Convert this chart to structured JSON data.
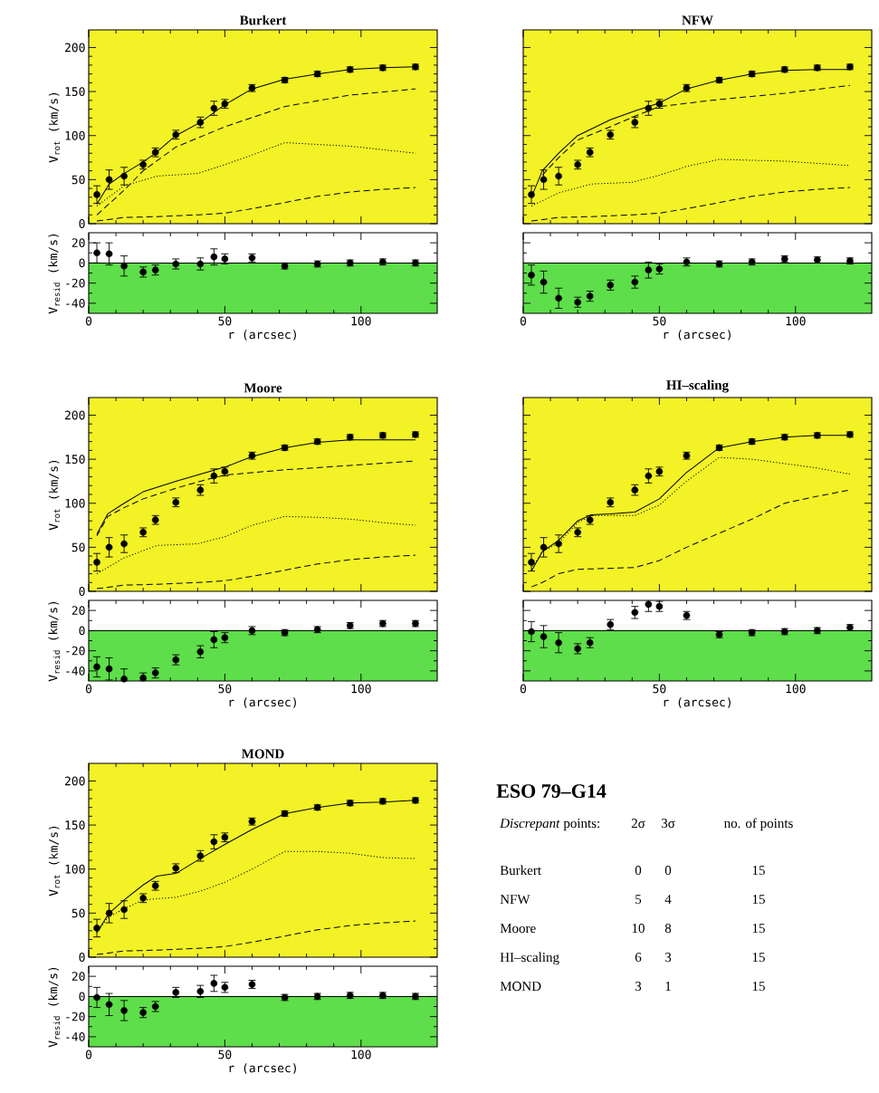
{
  "chart_data": [
    {
      "type": "line",
      "title": "Burkert",
      "ylabel": "V$_{rot}$ (km/s)",
      "xlim": [
        0,
        128
      ],
      "ylim": [
        0,
        220
      ],
      "xticks": [
        0,
        50,
        100
      ],
      "yticks": [
        0,
        50,
        100,
        150,
        200
      ],
      "tick_labels": "y",
      "x": [
        3,
        7.5,
        13,
        20,
        24.5,
        32,
        41,
        46,
        50,
        60,
        72,
        84,
        96,
        108,
        120
      ],
      "bands": [
        {
          "axis": "y",
          "from": 0,
          "to": 220,
          "color": "#f2f226"
        }
      ],
      "series": [
        {
          "type": "line",
          "color": "#000000",
          "line_style": "solid",
          "x": [
            3,
            7.5,
            13,
            20,
            24.5,
            32,
            41,
            50,
            60,
            72,
            84,
            96,
            108,
            120
          ],
          "values": [
            22,
            45,
            57,
            70,
            80,
            100,
            115,
            135,
            153,
            164,
            170,
            175,
            177,
            178
          ]
        },
        {
          "type": "line",
          "color": "#000000",
          "line_style": "dashed",
          "x": [
            3,
            13,
            20,
            32,
            50,
            72,
            96,
            120
          ],
          "values": [
            10,
            38,
            60,
            87,
            110,
            133,
            146,
            153
          ]
        },
        {
          "type": "line",
          "color": "#000000",
          "line_style": "dotted",
          "x": [
            3,
            13,
            25,
            40,
            50,
            60,
            72,
            84,
            96,
            108,
            120
          ],
          "values": [
            20,
            43,
            54,
            57,
            67,
            78,
            92,
            90,
            88,
            84,
            80
          ]
        },
        {
          "type": "line",
          "color": "#000000",
          "line_style": "dashed",
          "x": [
            3,
            13,
            25,
            40,
            50,
            60,
            72,
            84,
            96,
            108,
            120
          ],
          "values": [
            3,
            7,
            8,
            10,
            12,
            17,
            24,
            31,
            36,
            39,
            41
          ]
        },
        {
          "type": "scatter",
          "color": "#000000",
          "marker": "circle",
          "values": [
            33,
            50,
            54,
            67,
            81,
            101,
            115,
            131,
            136,
            154,
            163,
            170,
            175,
            177,
            178
          ],
          "errors": [
            10,
            11,
            10,
            5,
            5,
            5,
            6,
            8,
            5,
            4,
            3,
            3,
            3,
            3,
            3
          ]
        }
      ]
    },
    {
      "type": "scatter",
      "xlabel": "r (arcsec)",
      "ylabel": "V$_{resid}$ (km/s)",
      "xlim": [
        0,
        128
      ],
      "ylim": [
        -50,
        30
      ],
      "xticks": [
        0,
        50,
        100
      ],
      "yticks": [
        -40,
        -20,
        0,
        20
      ],
      "x": [
        3,
        7.5,
        13,
        20,
        24.5,
        32,
        41,
        46,
        50,
        60,
        72,
        84,
        96,
        108,
        120
      ],
      "bands": [
        {
          "axis": "y",
          "from": -50,
          "to": 0,
          "color": "#5ede4a"
        }
      ],
      "ref_lines": [
        {
          "axis": "y",
          "value": 0
        }
      ],
      "series": [
        {
          "color": "#000000",
          "marker": "circle",
          "values": [
            10,
            9,
            -3,
            -9,
            -7,
            -1,
            -1,
            6,
            4,
            5,
            -3,
            -1,
            0,
            1,
            0
          ],
          "errors": [
            10,
            11,
            10,
            5,
            5,
            5,
            6,
            8,
            5,
            4,
            3,
            3,
            3,
            3,
            3
          ]
        }
      ]
    },
    {
      "type": "line",
      "title": "NFW",
      "xlim": [
        0,
        128
      ],
      "ylim": [
        0,
        220
      ],
      "xticks": [
        0,
        50,
        100
      ],
      "yticks": [
        0,
        50,
        100,
        150,
        200
      ],
      "tick_labels": false,
      "x": [
        3,
        7.5,
        13,
        20,
        24.5,
        32,
        41,
        46,
        50,
        60,
        72,
        84,
        96,
        108,
        120
      ],
      "bands": [
        {
          "axis": "y",
          "from": 0,
          "to": 220,
          "color": "#f2f226"
        }
      ],
      "series": [
        {
          "type": "line",
          "color": "#000000",
          "line_style": "solid",
          "x": [
            3,
            7,
            13,
            20,
            32,
            41,
            50,
            60,
            72,
            84,
            96,
            108,
            120
          ],
          "values": [
            30,
            60,
            80,
            100,
            118,
            128,
            137,
            153,
            163,
            170,
            174,
            175,
            175
          ]
        },
        {
          "type": "line",
          "color": "#000000",
          "line_style": "dashed",
          "x": [
            7,
            13,
            20,
            32,
            41,
            50,
            72,
            96,
            120
          ],
          "values": [
            55,
            75,
            95,
            110,
            122,
            133,
            141,
            148,
            157
          ]
        },
        {
          "type": "line",
          "color": "#000000",
          "line_style": "dotted",
          "x": [
            3,
            13,
            25,
            40,
            50,
            60,
            72,
            84,
            96,
            120
          ],
          "values": [
            20,
            35,
            45,
            47,
            55,
            65,
            73,
            72,
            71,
            66
          ]
        },
        {
          "type": "line",
          "color": "#000000",
          "line_style": "dashed",
          "x": [
            3,
            13,
            25,
            40,
            50,
            60,
            72,
            84,
            96,
            108,
            120
          ],
          "values": [
            3,
            7,
            8,
            10,
            12,
            17,
            24,
            31,
            36,
            39,
            41
          ]
        },
        {
          "type": "scatter",
          "color": "#000000",
          "marker": "circle",
          "values": [
            33,
            50,
            54,
            67,
            81,
            101,
            115,
            131,
            136,
            154,
            163,
            170,
            175,
            177,
            178
          ],
          "errors": [
            10,
            11,
            10,
            5,
            5,
            5,
            6,
            8,
            5,
            4,
            3,
            3,
            3,
            3,
            3
          ]
        }
      ]
    },
    {
      "type": "scatter",
      "xlabel": "r (arcsec)",
      "xlim": [
        0,
        128
      ],
      "ylim": [
        -50,
        30
      ],
      "xticks": [
        0,
        50,
        100
      ],
      "yticks": [
        -40,
        -20,
        0,
        20
      ],
      "tick_labels": "x",
      "x": [
        3,
        7.5,
        13,
        20,
        24.5,
        32,
        41,
        46,
        50,
        60,
        72,
        84,
        96,
        108,
        120
      ],
      "bands": [
        {
          "axis": "y",
          "from": -50,
          "to": 0,
          "color": "#5ede4a"
        }
      ],
      "ref_lines": [
        {
          "axis": "y",
          "value": 0
        }
      ],
      "series": [
        {
          "color": "#000000",
          "marker": "circle",
          "values": [
            -12,
            -19,
            -35,
            -39,
            -33,
            -22,
            -19,
            -7,
            -6,
            1,
            -1,
            1,
            4,
            3,
            2
          ],
          "errors": [
            10,
            11,
            10,
            5,
            5,
            5,
            6,
            8,
            5,
            4,
            3,
            3,
            3,
            3,
            3
          ]
        }
      ]
    },
    {
      "type": "line",
      "title": "Moore",
      "ylabel": "V$_{rot}$ (km/s)",
      "xlim": [
        0,
        128
      ],
      "ylim": [
        0,
        220
      ],
      "xticks": [
        0,
        50,
        100
      ],
      "yticks": [
        0,
        50,
        100,
        150,
        200
      ],
      "tick_labels": "y",
      "x": [
        3,
        7.5,
        13,
        20,
        24.5,
        32,
        41,
        46,
        50,
        60,
        72,
        84,
        96,
        108,
        120
      ],
      "bands": [
        {
          "axis": "y",
          "from": 0,
          "to": 220,
          "color": "#f2f226"
        }
      ],
      "series": [
        {
          "type": "line",
          "color": "#000000",
          "line_style": "solid",
          "x": [
            3,
            7,
            13,
            20,
            32,
            41,
            50,
            60,
            72,
            84,
            96,
            120
          ],
          "values": [
            65,
            88,
            100,
            113,
            125,
            133,
            141,
            153,
            163,
            169,
            172,
            172
          ]
        },
        {
          "type": "line",
          "color": "#000000",
          "line_style": "dashed",
          "x": [
            3,
            7,
            13,
            20,
            32,
            41,
            50,
            72,
            96,
            120
          ],
          "values": [
            63,
            85,
            95,
            105,
            117,
            125,
            132,
            138,
            143,
            148
          ]
        },
        {
          "type": "line",
          "color": "#000000",
          "line_style": "dotted",
          "x": [
            3,
            13,
            25,
            40,
            50,
            60,
            72,
            84,
            96,
            108,
            120
          ],
          "values": [
            20,
            38,
            52,
            54,
            62,
            75,
            85,
            84,
            82,
            78,
            75
          ]
        },
        {
          "type": "line",
          "color": "#000000",
          "line_style": "dashed",
          "x": [
            3,
            13,
            25,
            40,
            50,
            60,
            72,
            84,
            96,
            108,
            120
          ],
          "values": [
            3,
            7,
            8,
            10,
            12,
            17,
            24,
            31,
            36,
            39,
            41
          ]
        },
        {
          "type": "scatter",
          "color": "#000000",
          "marker": "circle",
          "values": [
            33,
            50,
            54,
            67,
            81,
            101,
            115,
            131,
            136,
            154,
            163,
            170,
            175,
            177,
            178
          ],
          "errors": [
            10,
            11,
            10,
            5,
            5,
            5,
            6,
            8,
            5,
            4,
            3,
            3,
            3,
            3,
            3
          ]
        }
      ]
    },
    {
      "type": "scatter",
      "xlabel": "r (arcsec)",
      "ylabel": "V$_{resid}$ (km/s)",
      "xlim": [
        0,
        128
      ],
      "ylim": [
        -50,
        30
      ],
      "xticks": [
        0,
        50,
        100
      ],
      "yticks": [
        -40,
        -20,
        0,
        20
      ],
      "x": [
        3,
        7.5,
        13,
        20,
        24.5,
        32,
        41,
        46,
        50,
        60,
        72,
        84,
        96,
        108,
        120
      ],
      "bands": [
        {
          "axis": "y",
          "from": -50,
          "to": 0,
          "color": "#5ede4a"
        }
      ],
      "ref_lines": [
        {
          "axis": "y",
          "value": 0
        }
      ],
      "series": [
        {
          "color": "#000000",
          "marker": "circle",
          "values": [
            -36,
            -38,
            -48,
            -47,
            -42,
            -29,
            -21,
            -9,
            -7,
            0,
            -2,
            1,
            5,
            7,
            7
          ],
          "errors": [
            10,
            11,
            [
              -50,
              -38
            ],
            [
              -50,
              -42
            ],
            5,
            5,
            6,
            8,
            5,
            4,
            3,
            3,
            3,
            3,
            3
          ]
        }
      ]
    },
    {
      "type": "line",
      "title": "HI–scaling",
      "xlim": [
        0,
        128
      ],
      "ylim": [
        0,
        220
      ],
      "xticks": [
        0,
        50,
        100
      ],
      "yticks": [
        0,
        50,
        100,
        150,
        200
      ],
      "tick_labels": false,
      "x": [
        3,
        7.5,
        13,
        20,
        24.5,
        32,
        41,
        46,
        50,
        60,
        72,
        84,
        96,
        108,
        120
      ],
      "bands": [
        {
          "axis": "y",
          "from": 0,
          "to": 220,
          "color": "#f2f226"
        }
      ],
      "series": [
        {
          "type": "line",
          "color": "#000000",
          "line_style": "solid",
          "x": [
            3,
            7,
            13,
            20,
            25,
            32,
            41,
            50,
            60,
            72,
            84,
            96,
            108,
            120
          ],
          "values": [
            23,
            45,
            58,
            80,
            87,
            88,
            90,
            105,
            135,
            163,
            170,
            175,
            177,
            177
          ]
        },
        {
          "type": "line",
          "color": "#000000",
          "line_style": "dotted",
          "x": [
            3,
            7,
            13,
            20,
            25,
            32,
            41,
            50,
            60,
            72,
            84,
            96,
            108,
            120
          ],
          "values": [
            25,
            45,
            55,
            78,
            86,
            86,
            86,
            98,
            125,
            152,
            150,
            145,
            140,
            133
          ]
        },
        {
          "type": "line",
          "color": "#000000",
          "line_style": "dashed",
          "x": [
            3,
            7,
            13,
            20,
            41,
            50,
            60,
            72,
            84,
            96,
            108,
            120
          ],
          "values": [
            5,
            10,
            20,
            25,
            27,
            35,
            50,
            66,
            82,
            100,
            108,
            115
          ]
        },
        {
          "type": "scatter",
          "color": "#000000",
          "marker": "circle",
          "values": [
            33,
            50,
            54,
            67,
            81,
            101,
            115,
            131,
            136,
            154,
            163,
            170,
            175,
            177,
            178
          ],
          "errors": [
            10,
            11,
            10,
            5,
            5,
            5,
            6,
            8,
            5,
            4,
            3,
            3,
            3,
            3,
            3
          ]
        }
      ]
    },
    {
      "type": "scatter",
      "xlabel": "r (arcsec)",
      "xlim": [
        0,
        128
      ],
      "ylim": [
        -50,
        30
      ],
      "xticks": [
        0,
        50,
        100
      ],
      "yticks": [
        -40,
        -20,
        0,
        20
      ],
      "tick_labels": "x",
      "x": [
        3,
        7.5,
        13,
        20,
        24.5,
        32,
        41,
        46,
        50,
        60,
        72,
        84,
        96,
        108,
        120
      ],
      "bands": [
        {
          "axis": "y",
          "from": -50,
          "to": 0,
          "color": "#5ede4a"
        }
      ],
      "ref_lines": [
        {
          "axis": "y",
          "value": 0
        }
      ],
      "series": [
        {
          "color": "#000000",
          "marker": "circle",
          "values": [
            -1,
            -6,
            -12,
            -18,
            -12,
            6,
            18,
            26,
            24,
            15,
            -4,
            -2,
            -1,
            0,
            3
          ],
          "errors": [
            10,
            11,
            10,
            5,
            5,
            5,
            6,
            [
              19,
              30
            ],
            5,
            4,
            3,
            3,
            3,
            3,
            3
          ]
        }
      ]
    },
    {
      "type": "line",
      "title": "MOND",
      "ylabel": "V$_{rot}$ (km/s)",
      "xlim": [
        0,
        128
      ],
      "ylim": [
        0,
        220
      ],
      "xticks": [
        0,
        50,
        100
      ],
      "yticks": [
        0,
        50,
        100,
        150,
        200
      ],
      "tick_labels": "y",
      "x": [
        3,
        7.5,
        13,
        20,
        24.5,
        32,
        41,
        46,
        50,
        60,
        72,
        84,
        96,
        108,
        120
      ],
      "bands": [
        {
          "axis": "y",
          "from": 0,
          "to": 220,
          "color": "#f2f226"
        }
      ],
      "series": [
        {
          "type": "line",
          "color": "#000000",
          "line_style": "solid",
          "x": [
            3,
            7.5,
            13,
            20,
            25,
            32,
            41,
            50,
            60,
            72,
            84,
            96,
            108,
            120
          ],
          "values": [
            28,
            50,
            65,
            82,
            92,
            95,
            112,
            128,
            145,
            163,
            170,
            175,
            176,
            178
          ]
        },
        {
          "type": "line",
          "color": "#000000",
          "line_style": "dotted",
          "x": [
            3,
            7,
            13,
            20,
            32,
            41,
            50,
            60,
            72,
            84,
            96,
            108,
            120
          ],
          "values": [
            28,
            45,
            55,
            65,
            68,
            75,
            85,
            100,
            120,
            120,
            118,
            113,
            112
          ]
        },
        {
          "type": "line",
          "color": "#000000",
          "line_style": "dashed",
          "x": [
            3,
            13,
            25,
            40,
            50,
            60,
            72,
            84,
            96,
            108,
            120
          ],
          "values": [
            3,
            7,
            8,
            10,
            12,
            17,
            24,
            31,
            36,
            39,
            41
          ]
        },
        {
          "type": "scatter",
          "color": "#000000",
          "marker": "circle",
          "values": [
            33,
            50,
            54,
            67,
            81,
            101,
            115,
            131,
            136,
            154,
            163,
            170,
            175,
            177,
            178
          ],
          "errors": [
            10,
            11,
            10,
            5,
            5,
            5,
            6,
            8,
            5,
            4,
            3,
            3,
            3,
            3,
            3
          ]
        }
      ]
    },
    {
      "type": "scatter",
      "xlabel": "r (arcsec)",
      "ylabel": "V$_{resid}$ (km/s)",
      "xlim": [
        0,
        128
      ],
      "ylim": [
        -50,
        30
      ],
      "xticks": [
        0,
        50,
        100
      ],
      "yticks": [
        -40,
        -20,
        0,
        20
      ],
      "x": [
        3,
        7.5,
        13,
        20,
        24.5,
        32,
        41,
        46,
        50,
        60,
        72,
        84,
        96,
        108,
        120
      ],
      "bands": [
        {
          "axis": "y",
          "from": -50,
          "to": 0,
          "color": "#5ede4a"
        }
      ],
      "ref_lines": [
        {
          "axis": "y",
          "value": 0
        }
      ],
      "series": [
        {
          "color": "#000000",
          "marker": "circle",
          "values": [
            -1,
            -8,
            -14,
            -16,
            -10,
            4,
            5,
            13,
            9,
            12,
            -1,
            0,
            1,
            1,
            0
          ],
          "errors": [
            10,
            11,
            10,
            5,
            5,
            5,
            6,
            8,
            5,
            4,
            3,
            3,
            3,
            3,
            3
          ]
        }
      ]
    },
    {
      "type": "other",
      "title": "ESO 79–G14",
      "annotations": [
        "*Discrepant* points:",
        "2σ",
        "3σ",
        "no. of points",
        "Burkert",
        "0",
        "0",
        "15",
        "NFW",
        "5",
        "4",
        "15",
        "Moore",
        "10",
        "8",
        "15",
        "HI–scaling",
        "6",
        "3",
        "15",
        "MOND",
        "3",
        "1",
        "15"
      ]
    }
  ]
}
